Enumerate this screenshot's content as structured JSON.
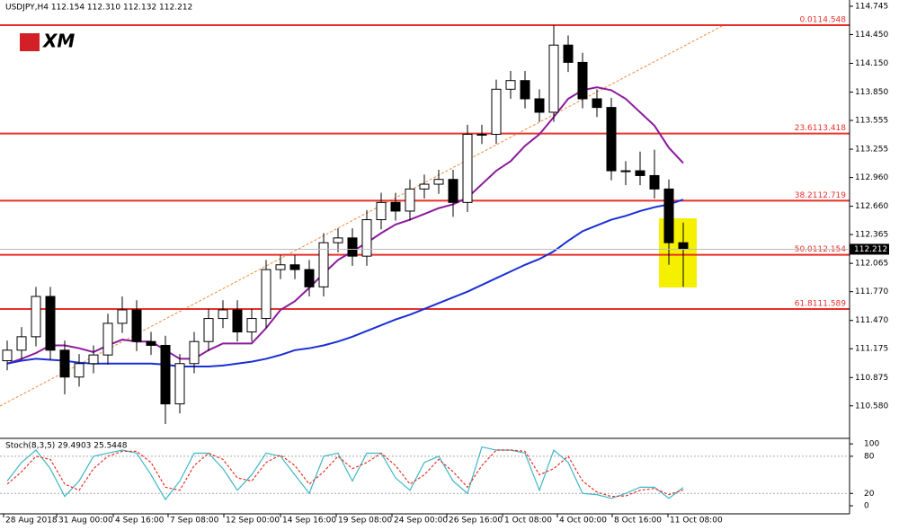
{
  "chart_data": [
    {
      "type": "candlestick",
      "title": "USDJPY,H4  112.154 112.310 112.132 112.212",
      "logo": "XM",
      "x": [
        2,
        6,
        10,
        14,
        18,
        22,
        26,
        30,
        34,
        38,
        42,
        46,
        50,
        54,
        58,
        62,
        66,
        70,
        74,
        78,
        82,
        86,
        90,
        94,
        98,
        102,
        106,
        110,
        114,
        118,
        122,
        126,
        130,
        134,
        138,
        142,
        146,
        150,
        154,
        158,
        162,
        166,
        170,
        174,
        178,
        182,
        186,
        190
      ],
      "open": [
        111.05,
        111.16,
        111.3,
        111.72,
        111.16,
        110.88,
        111.02,
        111.11,
        111.44,
        111.58,
        111.25,
        111.21,
        110.6,
        111.02,
        111.25,
        111.49,
        111.58,
        111.35,
        111.49,
        112.0,
        112.05,
        112.0,
        111.82,
        112.28,
        112.33,
        112.14,
        112.52,
        112.7,
        112.61,
        112.84,
        112.89,
        112.94,
        112.7,
        113.41,
        113.41,
        113.88,
        113.97,
        113.78,
        113.64,
        114.34,
        114.16,
        113.78,
        113.69,
        113.03,
        113.03,
        112.98,
        112.84,
        112.28
      ],
      "high": [
        111.26,
        111.4,
        111.82,
        111.82,
        111.26,
        111.12,
        111.21,
        111.54,
        111.72,
        111.68,
        111.35,
        111.31,
        111.12,
        111.35,
        111.59,
        111.68,
        111.68,
        111.59,
        112.1,
        112.15,
        112.15,
        112.1,
        112.38,
        112.43,
        112.43,
        112.62,
        112.8,
        112.8,
        112.94,
        112.99,
        113.04,
        113.04,
        113.51,
        113.51,
        113.98,
        114.07,
        114.07,
        113.88,
        114.548,
        114.44,
        114.26,
        113.88,
        113.79,
        113.13,
        113.23,
        113.25,
        112.94,
        112.49
      ],
      "low": [
        110.95,
        111.06,
        111.2,
        111.06,
        110.7,
        110.78,
        110.92,
        111.01,
        111.34,
        111.15,
        111.11,
        110.39,
        110.5,
        110.92,
        111.15,
        111.39,
        111.25,
        111.25,
        111.39,
        111.9,
        111.9,
        111.72,
        111.72,
        112.18,
        112.04,
        112.04,
        112.42,
        112.51,
        112.51,
        112.74,
        112.79,
        112.55,
        112.6,
        113.31,
        113.31,
        113.78,
        113.68,
        113.54,
        113.54,
        114.06,
        113.68,
        113.59,
        112.93,
        112.88,
        112.88,
        112.74,
        112.05,
        111.82
      ],
      "close": [
        111.16,
        111.3,
        111.72,
        111.16,
        110.88,
        111.02,
        111.11,
        111.44,
        111.58,
        111.25,
        111.21,
        110.6,
        111.02,
        111.25,
        111.49,
        111.58,
        111.35,
        111.49,
        112.0,
        112.05,
        112.0,
        111.82,
        112.28,
        112.33,
        112.14,
        112.52,
        112.7,
        112.61,
        112.84,
        112.89,
        112.94,
        112.7,
        113.41,
        113.41,
        113.88,
        113.97,
        113.78,
        113.64,
        114.34,
        114.16,
        113.78,
        113.69,
        113.03,
        113.03,
        112.98,
        112.84,
        112.28,
        112.212
      ],
      "lines": [
        {
          "color": "#8b1a9b",
          "values": [
            111.02,
            111.07,
            111.13,
            111.21,
            111.21,
            111.18,
            111.14,
            111.21,
            111.27,
            111.25,
            111.25,
            111.16,
            111.07,
            111.07,
            111.16,
            111.23,
            111.23,
            111.23,
            111.39,
            111.58,
            111.67,
            111.81,
            111.96,
            112.1,
            112.19,
            112.28,
            112.38,
            112.47,
            112.52,
            112.58,
            112.64,
            112.68,
            112.75,
            112.89,
            113.03,
            113.13,
            113.29,
            113.41,
            113.59,
            113.78,
            113.87,
            113.9,
            113.87,
            113.78,
            113.64,
            113.5,
            113.27,
            113.11
          ]
        },
        {
          "color": "#1a2fd6",
          "values": [
            111.02,
            111.05,
            111.07,
            111.06,
            111.05,
            111.03,
            111.02,
            111.02,
            111.02,
            111.02,
            111.02,
            111.01,
            110.99,
            110.99,
            110.99,
            111.0,
            111.02,
            111.04,
            111.07,
            111.11,
            111.16,
            111.18,
            111.21,
            111.25,
            111.3,
            111.36,
            111.42,
            111.48,
            111.53,
            111.59,
            111.65,
            111.71,
            111.77,
            111.84,
            111.91,
            111.98,
            112.05,
            112.11,
            112.19,
            112.3,
            112.4,
            112.46,
            112.52,
            112.56,
            112.61,
            112.65,
            112.68,
            112.73
          ]
        }
      ],
      "fib_levels": [
        {
          "label": "0.0114.548",
          "value": 114.548
        },
        {
          "label": "23.6113.418",
          "value": 113.418
        },
        {
          "label": "38.2112.719",
          "value": 112.719
        },
        {
          "label": "50.0112.154",
          "value": 112.154
        },
        {
          "label": "61.8111.589",
          "value": 111.589
        }
      ],
      "current_price": 112.212,
      "xlim": [
        0,
        236.25
      ],
      "ylim": [
        110.25,
        114.81
      ],
      "yticks": [
        114.745,
        {
          "value": 114.45,
          "label": "114.450"
        },
        {
          "value": 114.15,
          "label": "114.150"
        },
        {
          "value": 113.85,
          "label": "113.850"
        },
        113.555,
        113.255,
        {
          "value": 112.96,
          "label": "112.960"
        },
        {
          "value": 112.66,
          "label": "112.660"
        },
        112.365,
        112.065,
        {
          "value": 111.77,
          "label": "111.770"
        },
        {
          "value": 111.47,
          "label": "111.470"
        },
        111.175,
        110.875,
        {
          "value": 110.58,
          "label": "110.580"
        }
      ],
      "xticks": [
        {
          "value": 1,
          "label": "28 Aug 2018"
        },
        {
          "value": 15.75,
          "label": "31 Aug 00:00"
        },
        {
          "value": 31.5,
          "label": "4 Sep 16:00"
        },
        {
          "value": 46.75,
          "label": "7 Sep 08:00"
        },
        {
          "value": 62.25,
          "label": "12 Sep 00:00"
        },
        {
          "value": 78,
          "label": "14 Sep 16:00"
        },
        {
          "value": 93.5,
          "label": "19 Sep 08:00"
        },
        {
          "value": 109,
          "label": "24 Sep 00:00"
        },
        {
          "value": 124.25,
          "label": "26 Sep 16:00"
        },
        {
          "value": 139.75,
          "label": "1 Oct 08:00"
        },
        {
          "value": 155,
          "label": "4 Oct 00:00"
        },
        {
          "value": 170.25,
          "label": "8 Oct 16:00"
        },
        {
          "value": 185.75,
          "label": "11 Oct 08:00"
        }
      ]
    },
    {
      "type": "line",
      "title": "Stoch(8,3,5) 29.4903 25.5448",
      "x": [
        2,
        6,
        10,
        14,
        18,
        22,
        26,
        30,
        34,
        38,
        42,
        46,
        50,
        54,
        58,
        62,
        66,
        70,
        74,
        78,
        82,
        86,
        90,
        94,
        98,
        102,
        106,
        110,
        114,
        118,
        122,
        126,
        130,
        134,
        138,
        142,
        146,
        150,
        154,
        158,
        162,
        166,
        170,
        174,
        178,
        182,
        186,
        190
      ],
      "series": [
        {
          "color": "#3fb7c4",
          "dash": false,
          "values": [
            40,
            70,
            90,
            60,
            15,
            40,
            80,
            85,
            90,
            85,
            50,
            10,
            40,
            85,
            85,
            60,
            25,
            50,
            85,
            80,
            50,
            20,
            80,
            85,
            40,
            85,
            85,
            45,
            25,
            70,
            80,
            40,
            20,
            95,
            90,
            90,
            85,
            25,
            90,
            70,
            20,
            18,
            12,
            20,
            30,
            30,
            12,
            29.49
          ]
        },
        {
          "color": "#e8302a",
          "dash": true,
          "values": [
            35,
            55,
            80,
            75,
            35,
            25,
            60,
            80,
            88,
            88,
            70,
            30,
            25,
            65,
            85,
            75,
            45,
            40,
            70,
            82,
            65,
            35,
            55,
            80,
            60,
            70,
            85,
            65,
            35,
            50,
            75,
            55,
            30,
            65,
            90,
            90,
            88,
            50,
            60,
            80,
            40,
            22,
            15,
            16,
            25,
            28,
            18,
            25.54
          ]
        }
      ],
      "xlim": [
        0,
        236.25
      ],
      "ylim": [
        -13,
        106
      ],
      "yticks": [
        100,
        80,
        20,
        0
      ]
    }
  ]
}
